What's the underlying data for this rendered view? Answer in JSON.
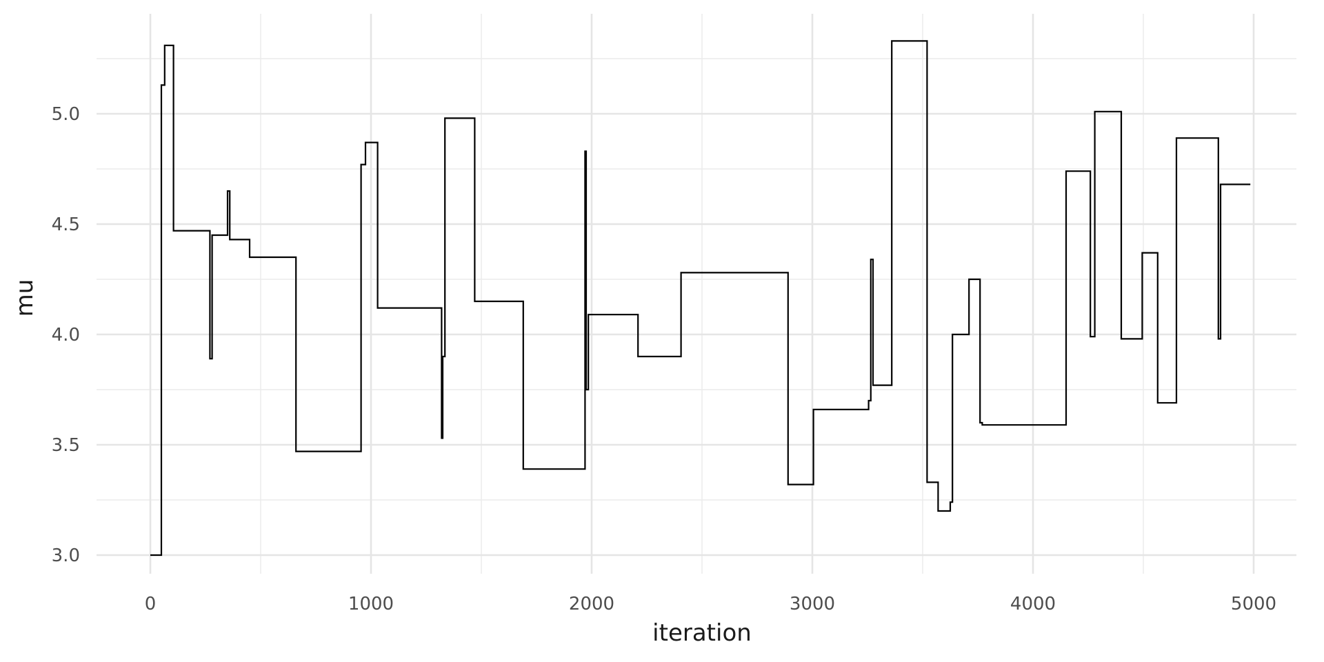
{
  "chart_data": {
    "type": "line",
    "step": true,
    "xlabel": "iteration",
    "ylabel": "mu",
    "xlim": [
      -250,
      5250
    ],
    "ylim": [
      2.94,
      5.35
    ],
    "x_ticks": [
      0,
      1000,
      2000,
      3000,
      4000,
      5000
    ],
    "x_tick_labels": [
      "0",
      "1000",
      "2000",
      "3000",
      "4000",
      "5000"
    ],
    "x_minor_ticks": [
      500,
      1500,
      2500,
      3500,
      4500
    ],
    "y_ticks": [
      3.0,
      3.5,
      4.0,
      4.5,
      5.0
    ],
    "y_tick_labels": [
      "3.0",
      "3.5",
      "4.0",
      "4.5",
      "5.0"
    ],
    "y_minor_ticks": [
      3.25,
      3.75,
      4.25,
      4.75,
      5.25
    ],
    "grid": true,
    "color": "#000000",
    "series": [
      {
        "x": [
          0,
          50,
          50,
          65,
          65,
          105,
          105,
          270,
          270,
          280,
          280,
          350,
          350,
          360,
          360,
          450,
          450,
          660,
          660,
          955,
          955,
          975,
          975,
          1030,
          1030,
          1320,
          1320,
          1325,
          1325,
          1335,
          1335,
          1470,
          1470,
          1690,
          1690,
          1970,
          1970,
          1975,
          1975,
          1985,
          1985,
          2210,
          2210,
          2405,
          2405,
          2890,
          2890,
          3005,
          3005,
          3255,
          3255,
          3265,
          3265,
          3275,
          3275,
          3360,
          3360,
          3520,
          3520,
          3570,
          3570,
          3625,
          3625,
          3635,
          3635,
          3710,
          3710,
          3760,
          3760,
          3770,
          3770,
          4150,
          4150,
          4260,
          4260,
          4280,
          4280,
          4400,
          4400,
          4495,
          4495,
          4565,
          4565,
          4650,
          4650,
          4840,
          4840,
          4850,
          4850,
          4985
        ],
        "y": [
          3.0,
          3.0,
          5.13,
          5.13,
          5.31,
          5.31,
          4.47,
          4.47,
          3.89,
          3.89,
          4.45,
          4.45,
          4.65,
          4.65,
          4.43,
          4.43,
          4.35,
          4.35,
          3.47,
          3.47,
          4.77,
          4.77,
          4.87,
          4.87,
          4.12,
          4.12,
          3.53,
          3.53,
          3.9,
          3.9,
          4.98,
          4.98,
          4.15,
          4.15,
          3.39,
          3.39,
          4.83,
          4.83,
          3.75,
          3.75,
          4.09,
          4.09,
          3.9,
          3.9,
          4.28,
          4.28,
          3.32,
          3.32,
          3.66,
          3.66,
          3.7,
          3.7,
          4.34,
          4.34,
          3.77,
          3.77,
          5.33,
          5.33,
          3.33,
          3.33,
          3.2,
          3.2,
          3.24,
          3.24,
          4.0,
          4.0,
          4.25,
          4.25,
          3.6,
          3.6,
          3.59,
          3.59,
          4.74,
          4.74,
          3.99,
          3.99,
          5.01,
          5.01,
          3.98,
          3.98,
          4.37,
          4.37,
          3.69,
          3.69,
          4.89,
          4.89,
          3.98,
          3.98,
          4.68,
          4.68
        ]
      }
    ]
  }
}
